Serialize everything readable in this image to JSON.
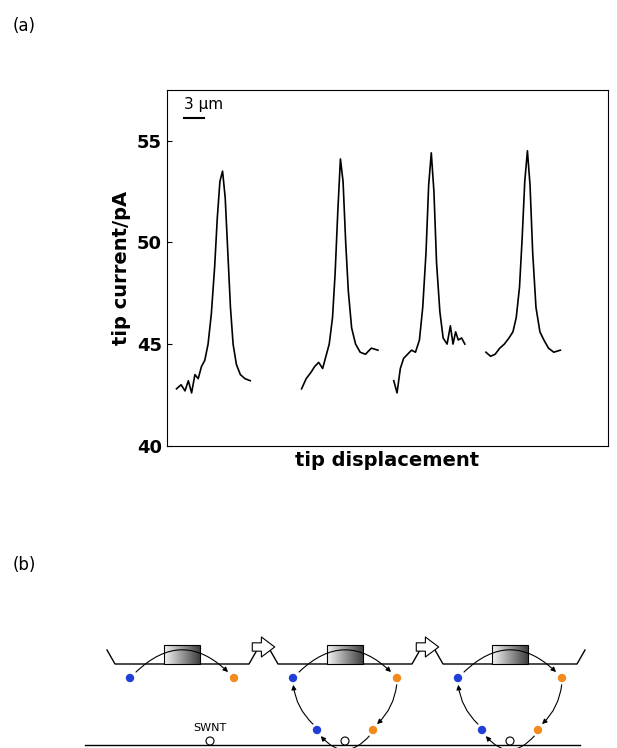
{
  "panel_labels": [
    "(a)",
    "(b)"
  ],
  "chart_data": {
    "type": "line",
    "x_label": "tip displacement",
    "y_label": "tip current/pA",
    "xlim": [
      0,
      67
    ],
    "ylim": [
      40,
      57.5
    ],
    "yticks": [
      40,
      45,
      50,
      55
    ],
    "tick_labels": "y",
    "color": "#000000",
    "scale_bar": {
      "length": 3,
      "label": "3 μm"
    },
    "series": [
      {
        "x": [
          1.5,
          2.2,
          2.8,
          3.3,
          3.8,
          4.3,
          4.8,
          5.3,
          5.8,
          6.3,
          6.8,
          7.3,
          7.7,
          8.1,
          8.5,
          8.9,
          9.3,
          9.7,
          10.1,
          10.6,
          11.2,
          11.9,
          12.7
        ],
        "values": [
          42.8,
          43.0,
          42.7,
          43.2,
          42.6,
          43.5,
          43.3,
          43.9,
          44.2,
          45.0,
          46.5,
          48.8,
          51.2,
          53.0,
          53.5,
          52.2,
          49.5,
          46.8,
          45.0,
          44.0,
          43.5,
          43.3,
          43.2
        ]
      },
      {
        "x": [
          20.5,
          21.2,
          21.9,
          22.5,
          23.1,
          23.7,
          24.2,
          24.7,
          25.2,
          25.6,
          26.0,
          26.4,
          26.8,
          27.2,
          27.6,
          28.1,
          28.7,
          29.4,
          30.2,
          31.1,
          32.1
        ],
        "values": [
          42.8,
          43.3,
          43.6,
          43.9,
          44.1,
          43.8,
          44.4,
          45.0,
          46.3,
          48.5,
          51.5,
          54.1,
          53.0,
          50.0,
          47.6,
          45.8,
          45.0,
          44.6,
          44.5,
          44.8,
          44.7
        ]
      },
      {
        "x": [
          34.5,
          35.0,
          35.5,
          36.0,
          36.6,
          37.2,
          37.8,
          38.4,
          38.9,
          39.4,
          39.8,
          40.2,
          40.6,
          41.0,
          41.5,
          42.0,
          42.6,
          43.1,
          43.5,
          43.9,
          44.3,
          44.8,
          45.3
        ],
        "values": [
          43.2,
          42.6,
          43.8,
          44.3,
          44.5,
          44.7,
          44.6,
          45.2,
          46.8,
          49.5,
          52.8,
          54.4,
          52.5,
          49.0,
          46.6,
          45.3,
          45.0,
          45.9,
          45.0,
          45.6,
          45.2,
          45.3,
          45.0
        ]
      },
      {
        "x": [
          48.5,
          49.2,
          49.9,
          50.6,
          51.3,
          52.0,
          52.6,
          53.1,
          53.6,
          54.0,
          54.4,
          54.8,
          55.2,
          55.6,
          56.1,
          56.7,
          57.3,
          58.0,
          58.8,
          59.8
        ],
        "values": [
          44.6,
          44.4,
          44.5,
          44.8,
          45.0,
          45.3,
          45.6,
          46.3,
          47.8,
          50.2,
          53.0,
          54.5,
          52.8,
          49.5,
          46.8,
          45.6,
          45.2,
          44.8,
          44.6,
          44.7
        ]
      }
    ]
  },
  "diagram": {
    "annotation": "SWNT"
  }
}
